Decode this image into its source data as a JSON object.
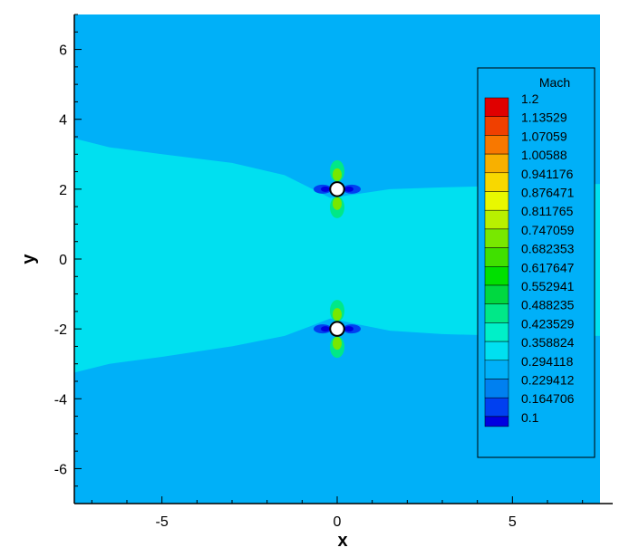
{
  "chart_data": {
    "type": "heatmap",
    "title": "",
    "xlabel": "x",
    "ylabel": "y",
    "xlim": [
      -7.5,
      7.5
    ],
    "ylim": [
      -7,
      7
    ],
    "x_ticks": [
      -5,
      0,
      5
    ],
    "x_tick_labels": [
      "-5",
      "0",
      "5"
    ],
    "y_ticks": [
      -6,
      -4,
      -2,
      0,
      2,
      4,
      6
    ],
    "y_tick_labels": [
      "-6",
      "-4",
      "-2",
      "0",
      "2",
      "4",
      "6"
    ],
    "grid": false,
    "legend": {
      "title": "Mach",
      "placement": "right",
      "levels": [
        "1.2",
        "1.13529",
        "1.07059",
        "1.00588",
        "0.941176",
        "0.876471",
        "0.811765",
        "0.747059",
        "0.682353",
        "0.617647",
        "0.552941",
        "0.488235",
        "0.423529",
        "0.358824",
        "0.294118",
        "0.229412",
        "0.164706",
        "0.1"
      ],
      "colors": [
        "#e00000",
        "#f04000",
        "#f87800",
        "#f8b000",
        "#f8d800",
        "#e8f800",
        "#b8f000",
        "#78e800",
        "#40e000",
        "#00e000",
        "#00d840",
        "#00e888",
        "#00f0c8",
        "#00e0f0",
        "#00b0f8",
        "#0080f0",
        "#0040f0",
        "#0000e0"
      ]
    },
    "background_color": "#00b0f8",
    "jet_color": "#00e0f0",
    "jet_envelope": [
      {
        "x": -7.5,
        "upper": 3.45,
        "lower": -3.25
      },
      {
        "x": -6.5,
        "upper": 3.2,
        "lower": -3.0
      },
      {
        "x": -5.0,
        "upper": 3.0,
        "lower": -2.8
      },
      {
        "x": -3.0,
        "upper": 2.75,
        "lower": -2.5
      },
      {
        "x": -1.5,
        "upper": 2.4,
        "lower": -2.2
      },
      {
        "x": -0.7,
        "upper": 2.0,
        "lower": -1.9
      },
      {
        "x": -0.2,
        "upper": 1.75,
        "lower": -1.7
      },
      {
        "x": 0.5,
        "upper": 1.85,
        "lower": -1.85
      },
      {
        "x": 1.5,
        "upper": 2.0,
        "lower": -2.05
      },
      {
        "x": 3.0,
        "upper": 2.05,
        "lower": -2.15
      },
      {
        "x": 5.0,
        "upper": 2.1,
        "lower": -2.2
      },
      {
        "x": 7.5,
        "upper": 2.15,
        "lower": -2.2
      }
    ],
    "cylinders": [
      {
        "x": 0,
        "y": 2,
        "r": 0.2
      },
      {
        "x": 0,
        "y": -2,
        "r": 0.2
      }
    ]
  }
}
